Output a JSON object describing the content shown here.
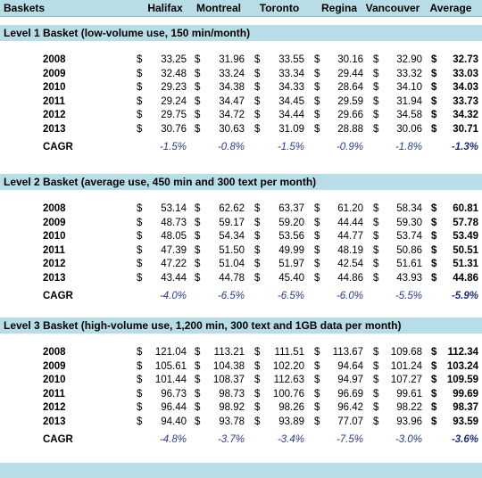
{
  "header": {
    "col0": "Baskets",
    "cities": [
      "Halifax",
      "Montreal",
      "Toronto",
      "Regina",
      "Vancouver",
      "Average"
    ]
  },
  "currency_symbol": "$",
  "cagr_label": "CAGR",
  "sections": [
    {
      "title": "Level 1 Basket (low-volume use, 150 min/month)",
      "rows": [
        {
          "year": "2008",
          "values": [
            "33.25",
            "31.96",
            "33.55",
            "30.16",
            "32.90",
            "32.73"
          ]
        },
        {
          "year": "2009",
          "values": [
            "32.48",
            "33.24",
            "33.34",
            "29.44",
            "33.32",
            "33.03"
          ]
        },
        {
          "year": "2010",
          "values": [
            "29.23",
            "34.38",
            "34.33",
            "28.64",
            "34.10",
            "34.03"
          ]
        },
        {
          "year": "2011",
          "values": [
            "29.24",
            "34.47",
            "34.45",
            "29.59",
            "31.94",
            "33.73"
          ]
        },
        {
          "year": "2012",
          "values": [
            "29.75",
            "34.72",
            "34.44",
            "29.66",
            "34.58",
            "34.32"
          ]
        },
        {
          "year": "2013",
          "values": [
            "30.76",
            "30.63",
            "31.09",
            "28.88",
            "30.06",
            "30.71"
          ]
        }
      ],
      "cagr": [
        "-1.5%",
        "-0.8%",
        "-1.5%",
        "-0.9%",
        "-1.8%",
        "-1.3%"
      ]
    },
    {
      "title": "Level 2 Basket (average use, 450 min and 300 text per month)",
      "rows": [
        {
          "year": "2008",
          "values": [
            "53.14",
            "62.62",
            "63.37",
            "61.20",
            "58.34",
            "60.81"
          ]
        },
        {
          "year": "2009",
          "values": [
            "48.73",
            "59.17",
            "59.20",
            "44.44",
            "59.30",
            "57.78"
          ]
        },
        {
          "year": "2010",
          "values": [
            "48.05",
            "54.34",
            "53.56",
            "44.77",
            "53.74",
            "53.49"
          ]
        },
        {
          "year": "2011",
          "values": [
            "47.39",
            "51.50",
            "49.99",
            "48.19",
            "50.86",
            "50.51"
          ]
        },
        {
          "year": "2012",
          "values": [
            "47.22",
            "51.04",
            "51.97",
            "42.54",
            "51.61",
            "51.31"
          ]
        },
        {
          "year": "2013",
          "values": [
            "43.44",
            "44.78",
            "45.40",
            "44.86",
            "43.93",
            "44.86"
          ]
        }
      ],
      "cagr": [
        "-4.0%",
        "-6.5%",
        "-6.5%",
        "-6.0%",
        "-5.5%",
        "-5.9%"
      ]
    },
    {
      "title": "Level 3 Basket (high-volume use, 1,200 min, 300 text and 1GB data per month)",
      "rows": [
        {
          "year": "2008",
          "values": [
            "121.04",
            "113.21",
            "111.51",
            "113.67",
            "109.68",
            "112.34"
          ]
        },
        {
          "year": "2009",
          "values": [
            "105.61",
            "104.38",
            "102.20",
            "94.64",
            "101.24",
            "103.24"
          ]
        },
        {
          "year": "2010",
          "values": [
            "101.44",
            "108.37",
            "112.63",
            "94.97",
            "107.27",
            "109.59"
          ]
        },
        {
          "year": "2011",
          "values": [
            "96.73",
            "98.73",
            "100.76",
            "96.69",
            "99.61",
            "99.69"
          ]
        },
        {
          "year": "2012",
          "values": [
            "96.44",
            "98.92",
            "98.26",
            "96.42",
            "98.22",
            "98.37"
          ]
        },
        {
          "year": "2013",
          "values": [
            "94.40",
            "93.78",
            "93.89",
            "77.07",
            "93.96",
            "93.59"
          ]
        }
      ],
      "cagr": [
        "-4.8%",
        "-3.7%",
        "-3.4%",
        "-7.5%",
        "-3.0%",
        "-3.6%"
      ]
    }
  ]
}
